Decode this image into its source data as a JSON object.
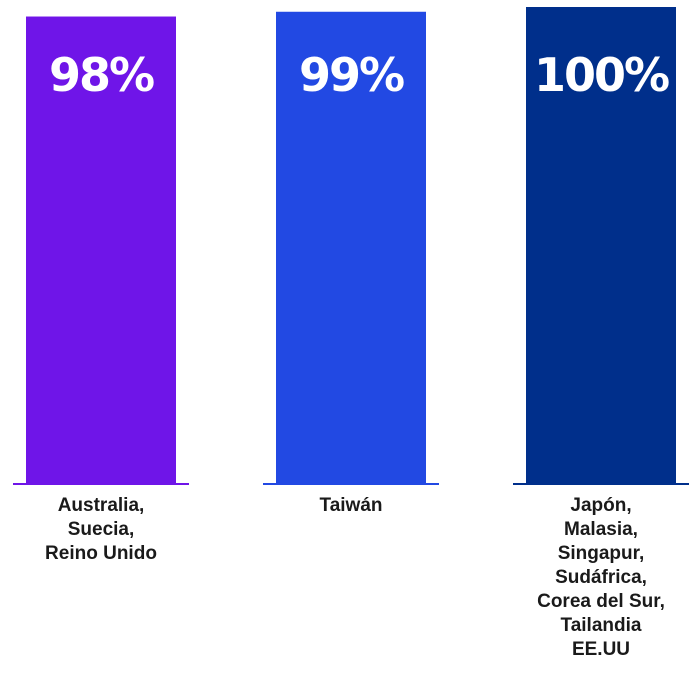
{
  "chart_data": {
    "type": "bar",
    "categories": [
      [
        "Australia,",
        "Suecia,",
        "Reino Unido"
      ],
      [
        "Taiwán"
      ],
      [
        "Japón,",
        "Malasia,",
        "Singapur,",
        "Sudáfrica,",
        "Corea del Sur,",
        "Tailandia",
        "EE.UU"
      ]
    ],
    "values": [
      98,
      99,
      100
    ],
    "value_labels": [
      "98%",
      "99%",
      "100%"
    ],
    "colors": [
      "#6f15e8",
      "#2249e3",
      "#002f8b"
    ],
    "ylim": [
      0,
      100
    ],
    "grid": false,
    "legend": "none"
  }
}
